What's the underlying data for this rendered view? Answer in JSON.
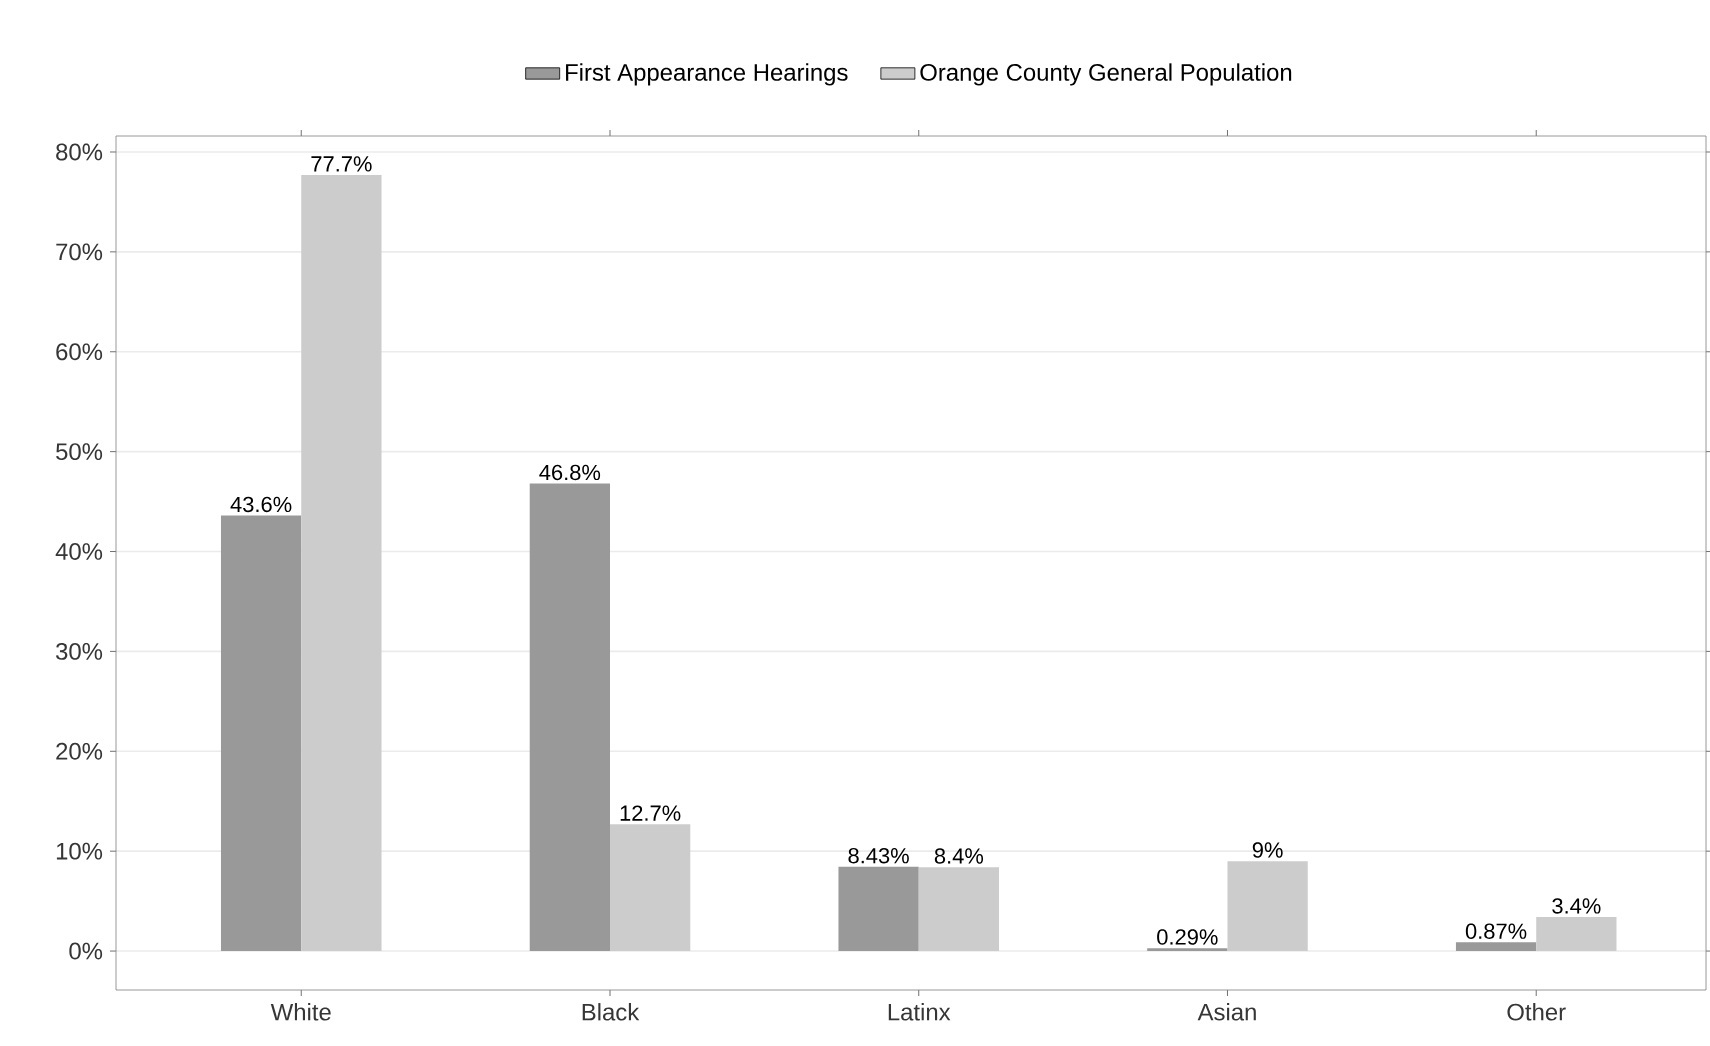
{
  "chart_data": {
    "type": "bar",
    "categories": [
      "White",
      "Black",
      "Latinx",
      "Asian",
      "Other"
    ],
    "series": [
      {
        "name": "First Appearance Hearings",
        "color": "#999999",
        "values": [
          43.6,
          46.8,
          8.43,
          0.29,
          0.87
        ],
        "value_labels": [
          "43.6%",
          "46.8%",
          "8.43%",
          "0.29%",
          "0.87%"
        ]
      },
      {
        "name": "Orange County General Population",
        "color": "#cccccc",
        "values": [
          77.7,
          12.7,
          8.4,
          9,
          3.4
        ],
        "value_labels": [
          "77.7%",
          "12.7%",
          "8.4%",
          "9%",
          "3.4%"
        ]
      }
    ],
    "ylim": [
      -3.9,
      81.6
    ],
    "yticks": [
      {
        "value": 0,
        "label": "0%"
      },
      {
        "value": 10,
        "label": "10%"
      },
      {
        "value": 20,
        "label": "20%"
      },
      {
        "value": 30,
        "label": "30%"
      },
      {
        "value": 40,
        "label": "40%"
      },
      {
        "value": 50,
        "label": "50%"
      },
      {
        "value": 60,
        "label": "60%"
      },
      {
        "value": 70,
        "label": "70%"
      },
      {
        "value": 80,
        "label": "80%"
      }
    ],
    "grid": "y",
    "legend": "top"
  }
}
